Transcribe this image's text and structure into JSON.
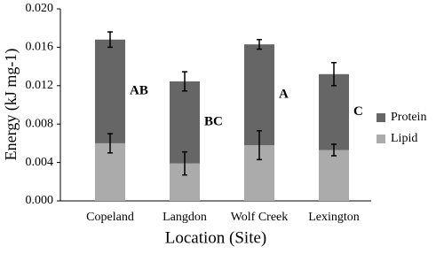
{
  "chart_data": {
    "type": "stacked-bar",
    "x_label": "Location (Site)",
    "y_label": "Energy (kJ mg-1)",
    "categories": [
      "Copeland",
      "Langdon",
      "Wolf Creek",
      "Lexington"
    ],
    "series": [
      {
        "name": "Lipid",
        "color": "#ababab",
        "values": [
          0.006,
          0.0039,
          0.0058,
          0.0053
        ],
        "errors": [
          0.001,
          0.0012,
          0.0015,
          0.0006
        ]
      },
      {
        "name": "Protein",
        "color": "#666666",
        "values": [
          0.0108,
          0.00855,
          0.0105,
          0.0079
        ],
        "errors": [
          0.0008,
          0.001,
          0.0005,
          0.0012
        ]
      }
    ],
    "annotations": [
      "AB",
      "BC",
      "A",
      "C"
    ],
    "ylim": [
      0,
      0.02
    ],
    "yticks": [
      {
        "value": 0,
        "label": "0.000"
      },
      {
        "value": 0.004,
        "label": "0.004"
      },
      {
        "value": 0.008,
        "label": "0.008"
      },
      {
        "value": 0.012,
        "label": "0.012"
      },
      {
        "value": 0.016,
        "label": "0.016"
      },
      {
        "value": 0.02,
        "label": "0.020"
      }
    ],
    "legend": "right"
  }
}
